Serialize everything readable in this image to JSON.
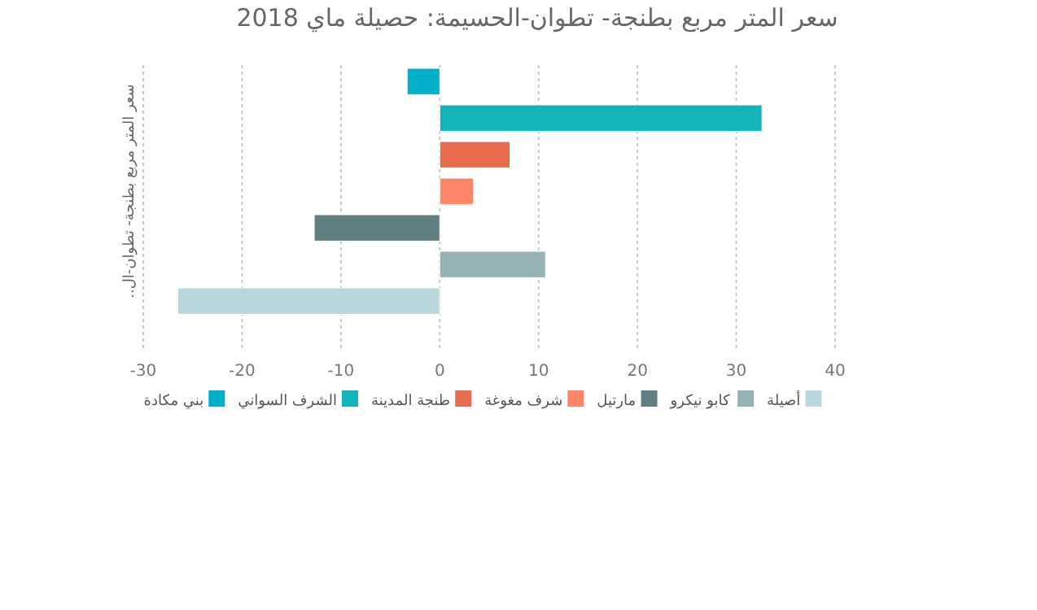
{
  "chart_data": {
    "type": "bar",
    "orientation": "horizontal",
    "title": "سعر المتر مربع بطنجة- تطوان-الحسيمة: حصيلة ماي 2018",
    "ylabel": "سعر المتر مربع بطنجة- تطوان-ال..",
    "categories": [
      null
    ],
    "series": [
      {
        "name": "بني مكادة",
        "color": "#00b0c8",
        "values": [
          -3.3
        ]
      },
      {
        "name": "الشرف السواني",
        "color": "#12b3b9",
        "values": [
          32.6
        ]
      },
      {
        "name": "طنجة المدينة",
        "color": "#e66c4c",
        "values": [
          7.1
        ]
      },
      {
        "name": "شرف مغوغة",
        "color": "#fd8568",
        "values": [
          3.4
        ]
      },
      {
        "name": "مارتيل",
        "color": "#5f7f82",
        "values": [
          -12.7
        ]
      },
      {
        "name": "كابو نيكرو",
        "color": "#94b2b6",
        "values": [
          10.7
        ]
      },
      {
        "name": "أصيلة",
        "color": "#b8d7dc",
        "values": [
          -26.5
        ]
      }
    ],
    "xlim": [
      -30,
      40
    ],
    "xticks": [
      -30,
      -20,
      -10,
      0,
      10,
      20,
      30,
      40
    ],
    "grid": "x",
    "legend": "bottom"
  }
}
